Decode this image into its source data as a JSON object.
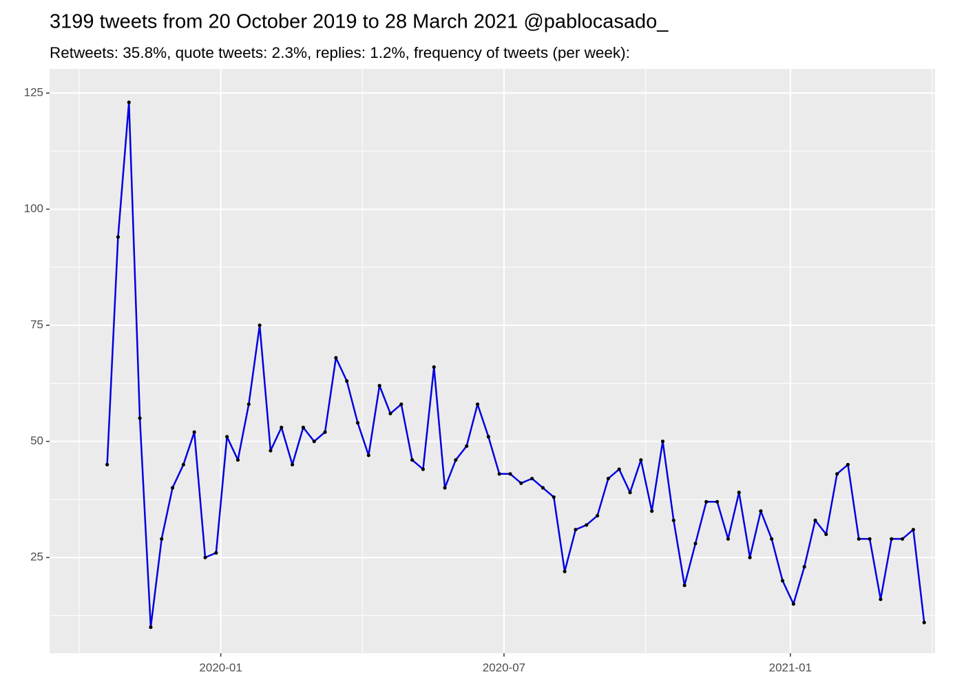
{
  "chart_data": {
    "type": "line",
    "title": "3199 tweets from 20 October 2019 to 28 March 2021 @pablocasado_",
    "subtitle": "Retweets: 35.8%, quote tweets: 2.3%, replies: 1.2%, frequency of tweets (per week):",
    "x": [
      "2019-10-20",
      "2019-10-27",
      "2019-11-03",
      "2019-11-10",
      "2019-11-17",
      "2019-11-24",
      "2019-12-01",
      "2019-12-08",
      "2019-12-15",
      "2019-12-22",
      "2019-12-29",
      "2020-01-05",
      "2020-01-12",
      "2020-01-19",
      "2020-01-26",
      "2020-02-02",
      "2020-02-09",
      "2020-02-16",
      "2020-02-23",
      "2020-03-01",
      "2020-03-08",
      "2020-03-15",
      "2020-03-22",
      "2020-03-29",
      "2020-04-05",
      "2020-04-12",
      "2020-04-19",
      "2020-04-26",
      "2020-05-03",
      "2020-05-10",
      "2020-05-17",
      "2020-05-24",
      "2020-05-31",
      "2020-06-07",
      "2020-06-14",
      "2020-06-21",
      "2020-06-28",
      "2020-07-05",
      "2020-07-12",
      "2020-07-19",
      "2020-07-26",
      "2020-08-02",
      "2020-08-09",
      "2020-08-16",
      "2020-08-23",
      "2020-08-30",
      "2020-09-06",
      "2020-09-13",
      "2020-09-20",
      "2020-09-27",
      "2020-10-04",
      "2020-10-11",
      "2020-10-18",
      "2020-10-25",
      "2020-11-01",
      "2020-11-08",
      "2020-11-15",
      "2020-11-22",
      "2020-11-29",
      "2020-12-06",
      "2020-12-13",
      "2020-12-20",
      "2020-12-27",
      "2021-01-03",
      "2021-01-10",
      "2021-01-17",
      "2021-01-24",
      "2021-01-31",
      "2021-02-07",
      "2021-02-14",
      "2021-02-21",
      "2021-02-28",
      "2021-03-07",
      "2021-03-14",
      "2021-03-21",
      "2021-03-28"
    ],
    "values": [
      45,
      94,
      123,
      55,
      10,
      29,
      40,
      45,
      52,
      25,
      26,
      51,
      46,
      58,
      75,
      48,
      53,
      45,
      53,
      50,
      52,
      68,
      63,
      54,
      47,
      62,
      56,
      58,
      46,
      44,
      66,
      40,
      46,
      49,
      58,
      51,
      43,
      43,
      41,
      42,
      40,
      38,
      22,
      31,
      32,
      34,
      42,
      44,
      39,
      46,
      35,
      50,
      33,
      19,
      28,
      37,
      37,
      29,
      39,
      25,
      35,
      29,
      20,
      15,
      23,
      33,
      30,
      43,
      45,
      29,
      29,
      16,
      29,
      29,
      31,
      11
    ],
    "color": "#0000e0",
    "xlim": [
      "2019-09-13",
      "2021-04-04"
    ],
    "xticks": [
      {
        "value": "2020-01-01",
        "label": "2020-01"
      },
      {
        "value": "2020-07-01",
        "label": "2020-07"
      },
      {
        "value": "2021-01-01",
        "label": "2021-01"
      }
    ],
    "ylim": [
      4.4,
      130.2
    ],
    "yticks": [
      25,
      50,
      75,
      100,
      125
    ],
    "grid": true
  }
}
